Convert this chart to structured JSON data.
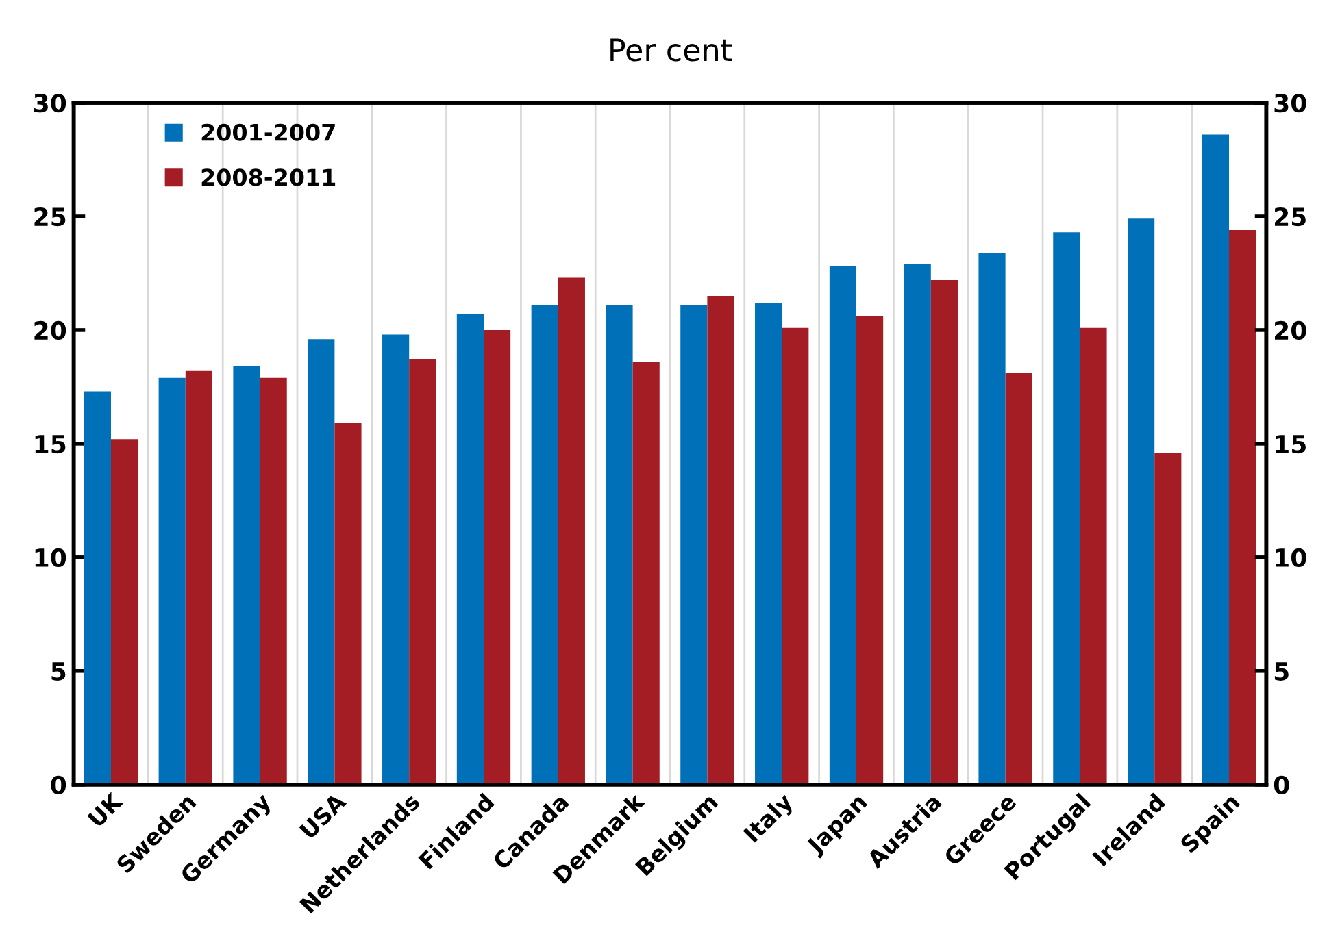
{
  "chart_data": {
    "type": "bar",
    "title": "Per cent",
    "categories": [
      "UK",
      "Sweden",
      "Germany",
      "USA",
      "Netherlands",
      "Finland",
      "Canada",
      "Denmark",
      "Belgium",
      "Italy",
      "Japan",
      "Austria",
      "Greece",
      "Portugal",
      "Ireland",
      "Spain"
    ],
    "series": [
      {
        "name": "2001-2007",
        "color": "#0070b8",
        "values": [
          17.3,
          17.9,
          18.4,
          19.6,
          19.8,
          20.7,
          21.1,
          21.1,
          21.1,
          21.2,
          22.8,
          22.9,
          23.4,
          24.3,
          24.9,
          28.6
        ]
      },
      {
        "name": "2008-2011",
        "color": "#a51d24",
        "values": [
          15.2,
          18.2,
          17.9,
          15.9,
          18.7,
          20.0,
          22.3,
          18.6,
          21.5,
          20.1,
          20.6,
          22.2,
          18.1,
          20.1,
          14.6,
          24.4
        ]
      }
    ],
    "ylim": [
      0,
      30
    ],
    "yticks": [
      0,
      5,
      10,
      15,
      20,
      25,
      30
    ],
    "y2lim": [
      0,
      30
    ],
    "y2ticks": [
      0,
      5,
      10,
      15,
      20,
      25,
      30
    ],
    "grid": "x",
    "legend": "top left"
  }
}
